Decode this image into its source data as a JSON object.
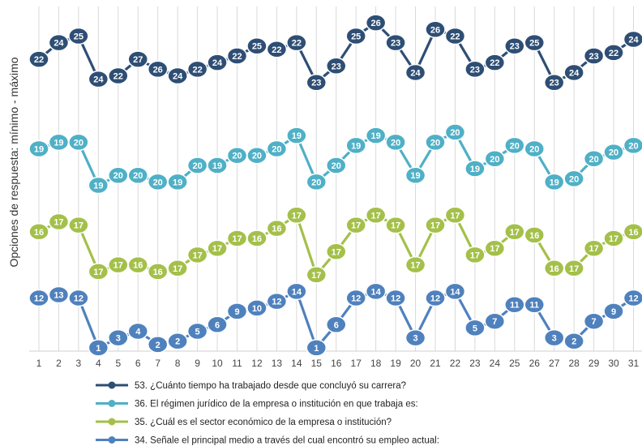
{
  "chart_data": {
    "type": "line",
    "ylabel": "Opciones de respuesta: mínimo - máximo",
    "xlabel": "",
    "x": [
      1,
      2,
      3,
      4,
      5,
      6,
      7,
      8,
      9,
      10,
      11,
      12,
      13,
      14,
      15,
      16,
      17,
      18,
      19,
      20,
      21,
      22,
      23,
      24,
      25,
      26,
      27,
      28,
      29,
      30,
      31
    ],
    "series": [
      {
        "name": "53. ¿Cuánto tiempo ha trabajado desde que concluyó su carrera?",
        "color": "#2e4e74",
        "labels": [
          22,
          24,
          25,
          24,
          22,
          27,
          26,
          24,
          22,
          24,
          22,
          25,
          22,
          22,
          23,
          23,
          25,
          26,
          23,
          24,
          26,
          22,
          23,
          22,
          23,
          25,
          23,
          24,
          23,
          22,
          24
        ],
        "level": [
          0.88,
          0.93,
          0.95,
          0.82,
          0.83,
          0.88,
          0.85,
          0.83,
          0.85,
          0.87,
          0.89,
          0.92,
          0.91,
          0.93,
          0.81,
          0.86,
          0.95,
          0.99,
          0.93,
          0.84,
          0.97,
          0.95,
          0.85,
          0.87,
          0.92,
          0.93,
          0.81,
          0.84,
          0.89,
          0.9,
          0.94
        ]
      },
      {
        "name": "36. El régimen jurídico de la empresa o institución en que trabaja es:",
        "color": "#4fb0c6",
        "labels": [
          19,
          19,
          20,
          19,
          20,
          20,
          20,
          19,
          20,
          19,
          20,
          20,
          20,
          19,
          20,
          20,
          19,
          19,
          20,
          19,
          20,
          20,
          19,
          20,
          20,
          20,
          19,
          20,
          20,
          20,
          20
        ],
        "level": [
          0.61,
          0.63,
          0.63,
          0.5,
          0.53,
          0.53,
          0.51,
          0.51,
          0.56,
          0.56,
          0.59,
          0.59,
          0.61,
          0.65,
          0.51,
          0.56,
          0.62,
          0.65,
          0.63,
          0.53,
          0.63,
          0.66,
          0.55,
          0.58,
          0.62,
          0.61,
          0.51,
          0.52,
          0.58,
          0.6,
          0.62
        ]
      },
      {
        "name": "35. ¿Cuál es el sector económico de la empresa o institución?",
        "color": "#a4c04a",
        "labels": [
          16,
          17,
          17,
          17,
          17,
          16,
          16,
          17,
          17,
          17,
          17,
          16,
          16,
          17,
          17,
          17,
          17,
          17,
          17,
          17,
          17,
          17,
          17,
          17,
          17,
          16,
          16,
          17,
          17,
          17,
          16
        ],
        "level": [
          0.36,
          0.39,
          0.38,
          0.24,
          0.26,
          0.26,
          0.24,
          0.25,
          0.29,
          0.31,
          0.34,
          0.34,
          0.37,
          0.41,
          0.23,
          0.3,
          0.38,
          0.41,
          0.38,
          0.26,
          0.38,
          0.41,
          0.29,
          0.31,
          0.36,
          0.35,
          0.25,
          0.25,
          0.31,
          0.34,
          0.36
        ]
      },
      {
        "name": "34. Señale el principal medio a través del cual encontró su empleo actual:",
        "color": "#4f81bd",
        "labels": [
          12,
          13,
          12,
          1,
          3,
          4,
          2,
          2,
          5,
          6,
          9,
          10,
          12,
          14,
          1,
          6,
          12,
          14,
          12,
          3,
          12,
          14,
          5,
          7,
          11,
          11,
          3,
          2,
          7,
          9,
          12
        ],
        "level": [
          0.16,
          0.17,
          0.16,
          0.01,
          0.04,
          0.06,
          0.02,
          0.03,
          0.06,
          0.08,
          0.12,
          0.13,
          0.15,
          0.18,
          0.01,
          0.08,
          0.16,
          0.18,
          0.16,
          0.04,
          0.16,
          0.18,
          0.07,
          0.09,
          0.14,
          0.14,
          0.04,
          0.03,
          0.09,
          0.12,
          0.16
        ]
      }
    ]
  }
}
